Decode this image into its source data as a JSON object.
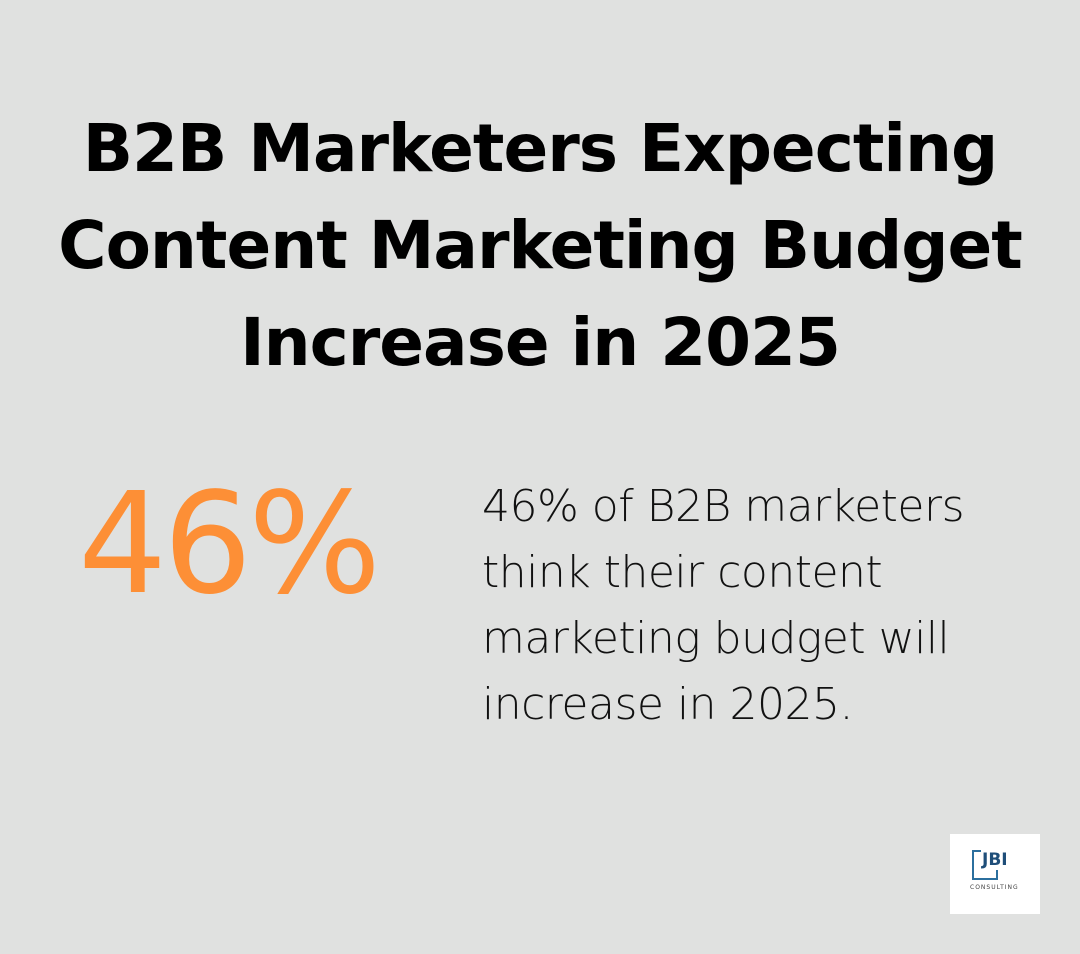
{
  "title": {
    "lines": [
      "B2B Marketers Expecting",
      "Content Marketing Budget",
      "Increase in 2025"
    ]
  },
  "stat": {
    "value": "46%",
    "color": "#fd8f36",
    "description_lines": [
      "46% of B2B marketers",
      "think their content",
      "marketing budget will",
      "increase in 2025."
    ]
  },
  "logo": {
    "mark": "JBI",
    "subtitle": "CONSULTING",
    "color": "#1f4e79"
  },
  "colors": {
    "background": "#e0e1e0",
    "text": "#000000",
    "accent": "#fd8f36"
  }
}
